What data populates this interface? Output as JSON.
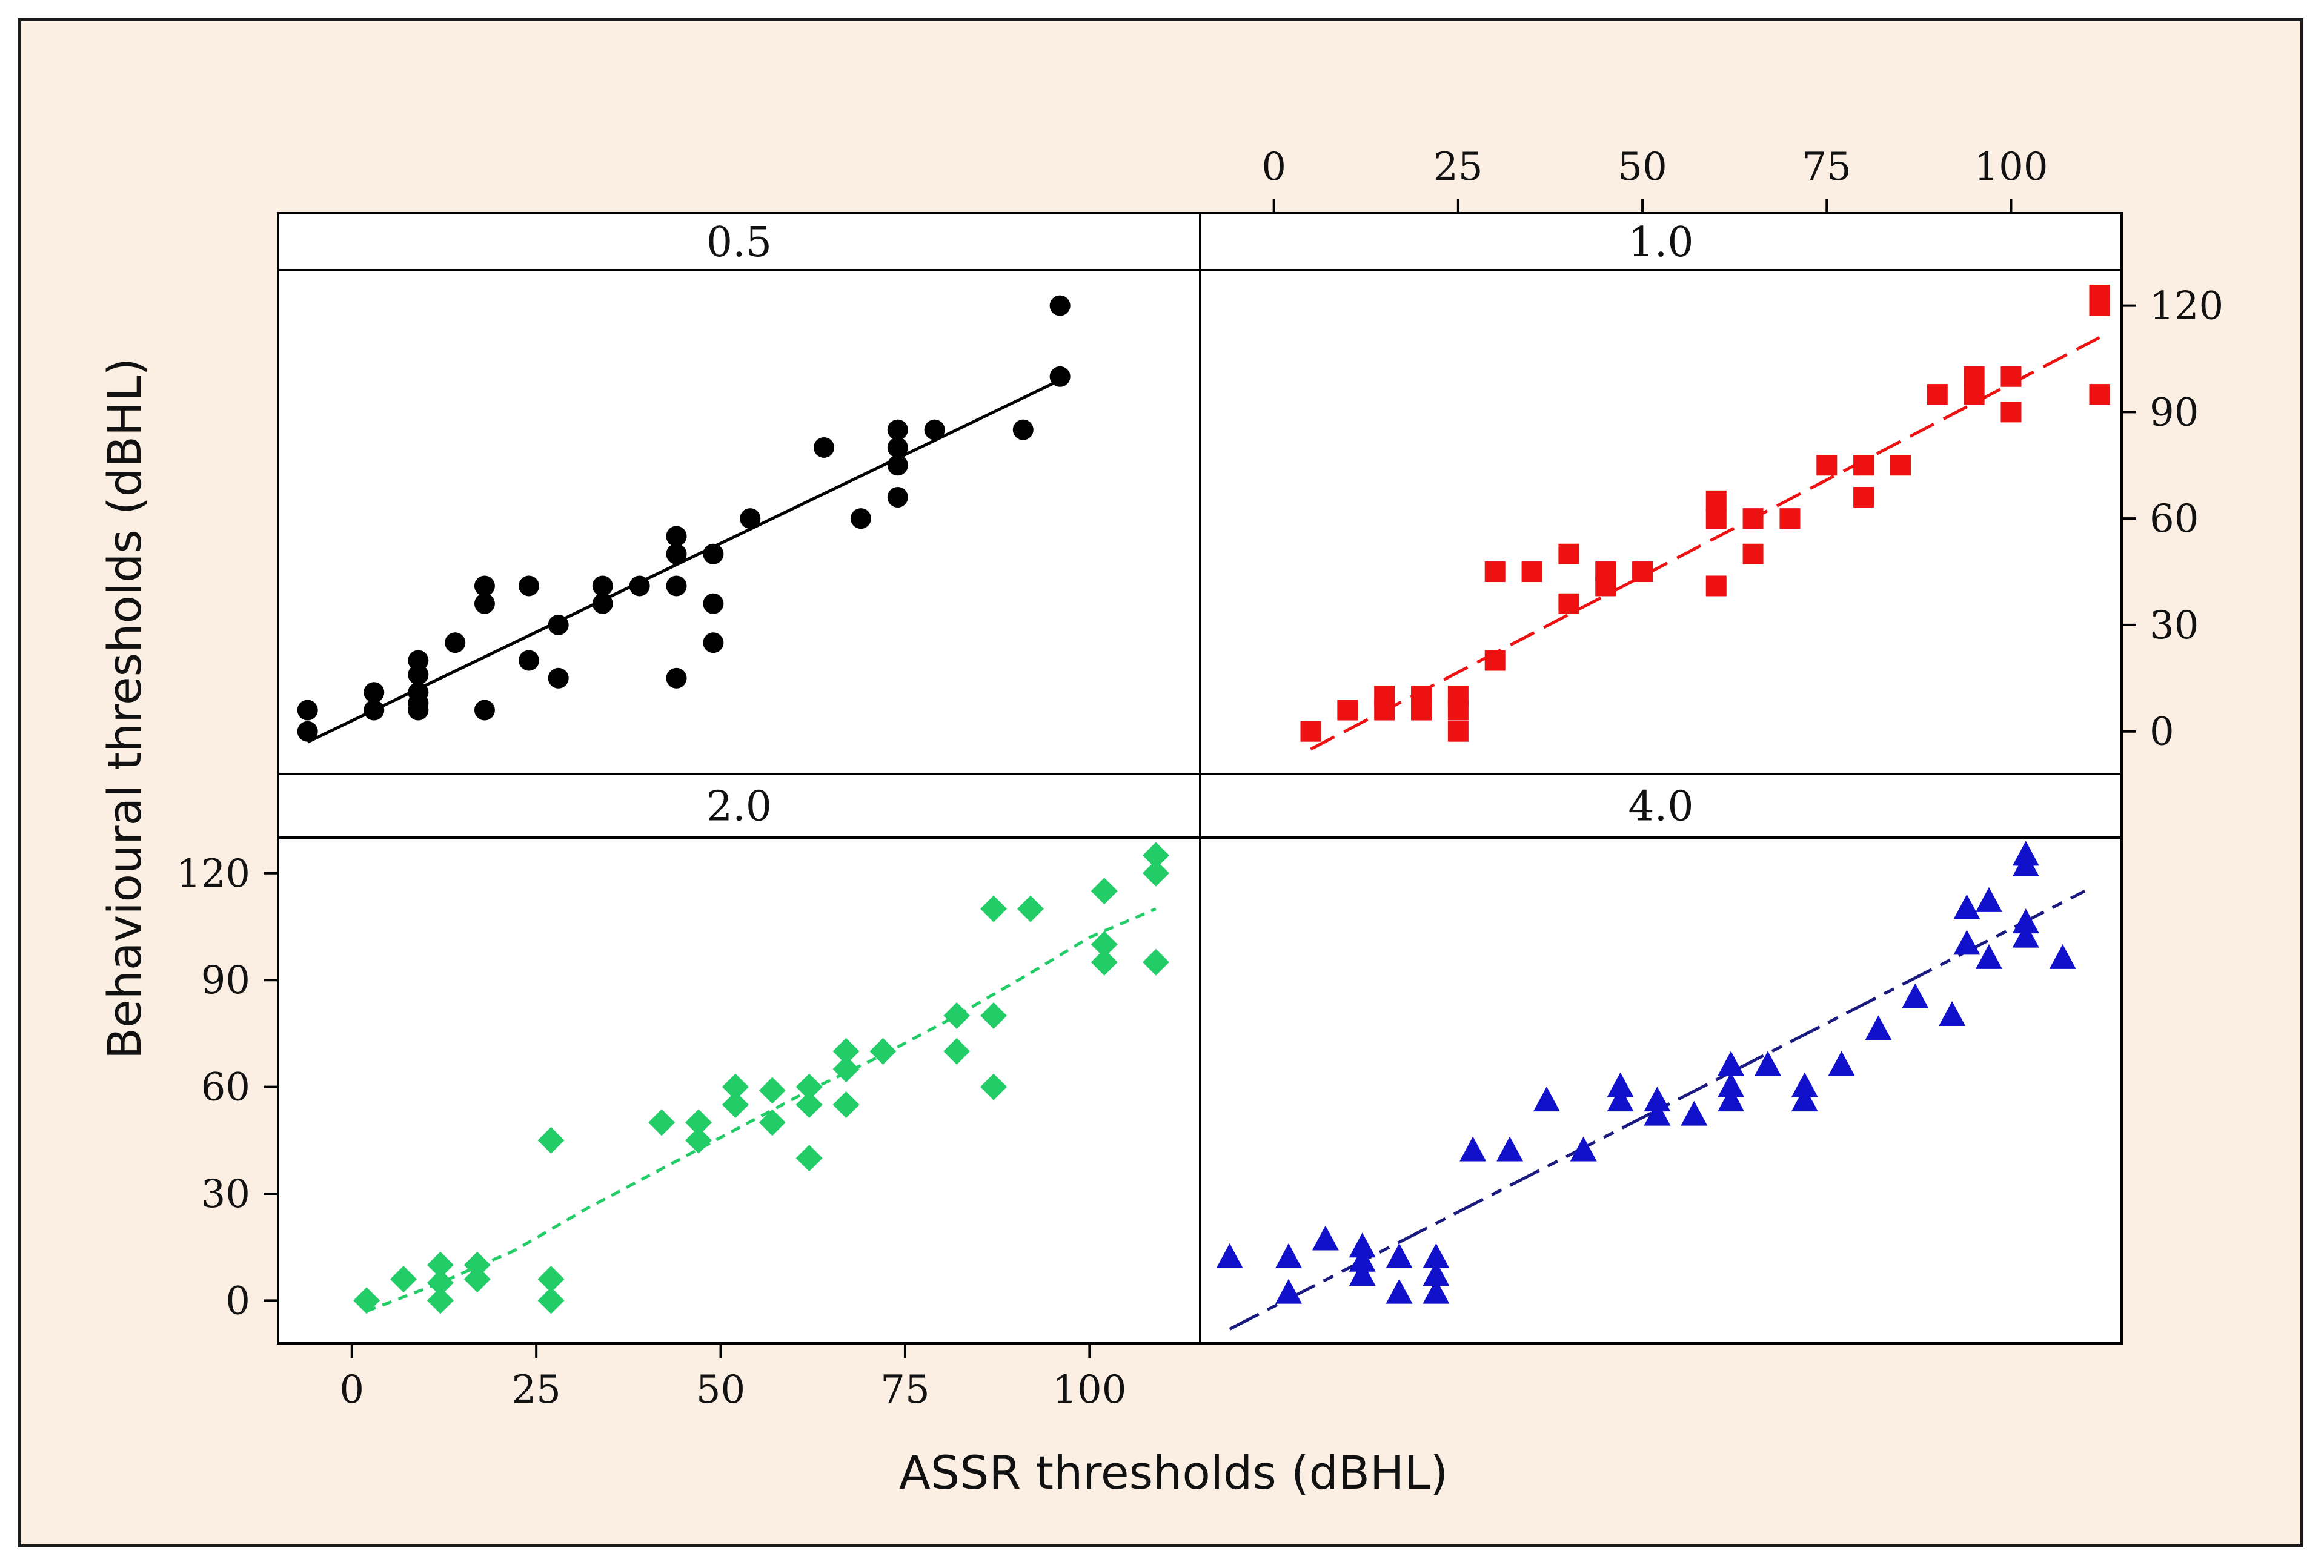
{
  "chart_data": {
    "type": "scatter",
    "layout": "2x2 trellis with shared axes",
    "xlabel": "ASSR thresholds (dBHL)",
    "ylabel": "Behavioural thresholds (dBHL)",
    "xlim": [
      -10,
      115
    ],
    "ylim": [
      -12,
      130
    ],
    "xticks": [
      0,
      25,
      50,
      75,
      100
    ],
    "yticks": [
      0,
      30,
      60,
      90,
      120
    ],
    "panels": [
      {
        "label": "0.5",
        "marker": "circle",
        "color": "#000000",
        "line_style": "solid",
        "fit": [
          [
            -6,
            -3
          ],
          [
            96,
            99
          ]
        ],
        "points": [
          [
            -6,
            6
          ],
          [
            -6,
            0
          ],
          [
            3,
            11
          ],
          [
            3,
            6
          ],
          [
            9,
            6
          ],
          [
            9,
            11
          ],
          [
            9,
            16
          ],
          [
            9,
            20
          ],
          [
            9,
            8
          ],
          [
            14,
            25
          ],
          [
            18,
            41
          ],
          [
            18,
            36
          ],
          [
            18,
            6
          ],
          [
            24,
            41
          ],
          [
            24,
            20
          ],
          [
            28,
            30
          ],
          [
            28,
            15
          ],
          [
            34,
            41
          ],
          [
            34,
            36
          ],
          [
            39,
            41
          ],
          [
            44,
            55
          ],
          [
            44,
            50
          ],
          [
            44,
            41
          ],
          [
            44,
            15
          ],
          [
            49,
            50
          ],
          [
            49,
            36
          ],
          [
            49,
            25
          ],
          [
            54,
            60
          ],
          [
            64,
            80
          ],
          [
            69,
            60
          ],
          [
            74,
            85
          ],
          [
            74,
            80
          ],
          [
            74,
            75
          ],
          [
            74,
            66
          ],
          [
            79,
            85
          ],
          [
            91,
            85
          ],
          [
            96,
            120
          ],
          [
            96,
            100
          ]
        ]
      },
      {
        "label": "1.0",
        "marker": "square",
        "color": "#ee1111",
        "line_style": "long-dash",
        "fit": [
          [
            5,
            -5
          ],
          [
            112,
            111
          ]
        ],
        "points": [
          [
            5,
            0
          ],
          [
            10,
            6
          ],
          [
            15,
            10
          ],
          [
            15,
            6
          ],
          [
            20,
            10
          ],
          [
            20,
            6
          ],
          [
            25,
            10
          ],
          [
            25,
            6
          ],
          [
            25,
            0
          ],
          [
            30,
            45
          ],
          [
            30,
            20
          ],
          [
            35,
            45
          ],
          [
            40,
            50
          ],
          [
            40,
            36
          ],
          [
            45,
            45
          ],
          [
            45,
            41
          ],
          [
            50,
            45
          ],
          [
            60,
            65
          ],
          [
            60,
            60
          ],
          [
            60,
            41
          ],
          [
            65,
            60
          ],
          [
            65,
            50
          ],
          [
            70,
            60
          ],
          [
            75,
            75
          ],
          [
            80,
            75
          ],
          [
            80,
            66
          ],
          [
            85,
            75
          ],
          [
            90,
            95
          ],
          [
            95,
            100
          ],
          [
            95,
            95
          ],
          [
            100,
            100
          ],
          [
            100,
            90
          ],
          [
            112,
            123
          ],
          [
            112,
            120
          ],
          [
            112,
            95
          ]
        ]
      },
      {
        "label": "2.0",
        "marker": "diamond",
        "color": "#22cc66",
        "line_style": "short-dash",
        "fit": [
          [
            2,
            -3
          ],
          [
            12,
            5
          ],
          [
            22,
            14
          ],
          [
            32,
            26
          ],
          [
            42,
            37
          ],
          [
            52,
            48
          ],
          [
            62,
            59
          ],
          [
            72,
            69
          ],
          [
            82,
            80
          ],
          [
            92,
            92
          ],
          [
            100,
            102
          ],
          [
            109,
            110
          ]
        ],
        "points": [
          [
            2,
            0
          ],
          [
            7,
            6
          ],
          [
            12,
            10
          ],
          [
            12,
            5
          ],
          [
            12,
            0
          ],
          [
            17,
            10
          ],
          [
            17,
            6
          ],
          [
            27,
            45
          ],
          [
            27,
            6
          ],
          [
            27,
            0
          ],
          [
            42,
            50
          ],
          [
            47,
            50
          ],
          [
            47,
            45
          ],
          [
            52,
            60
          ],
          [
            52,
            55
          ],
          [
            57,
            59
          ],
          [
            57,
            50
          ],
          [
            62,
            60
          ],
          [
            62,
            55
          ],
          [
            62,
            40
          ],
          [
            67,
            70
          ],
          [
            67,
            65
          ],
          [
            67,
            55
          ],
          [
            72,
            70
          ],
          [
            82,
            80
          ],
          [
            82,
            70
          ],
          [
            87,
            110
          ],
          [
            87,
            80
          ],
          [
            87,
            60
          ],
          [
            92,
            110
          ],
          [
            102,
            115
          ],
          [
            102,
            100
          ],
          [
            102,
            95
          ],
          [
            109,
            125
          ],
          [
            109,
            120
          ],
          [
            109,
            95
          ]
        ]
      },
      {
        "label": "4.0",
        "marker": "triangle",
        "color": "#1111cc",
        "line_style": "long-short-dash",
        "fit": [
          [
            -6,
            -8
          ],
          [
            110,
            115
          ]
        ],
        "points": [
          [
            -6,
            12
          ],
          [
            2,
            12
          ],
          [
            2,
            2
          ],
          [
            7,
            17
          ],
          [
            12,
            15
          ],
          [
            12,
            11
          ],
          [
            12,
            7
          ],
          [
            17,
            12
          ],
          [
            17,
            2
          ],
          [
            22,
            12
          ],
          [
            22,
            7
          ],
          [
            22,
            2
          ],
          [
            27,
            42
          ],
          [
            32,
            42
          ],
          [
            37,
            56
          ],
          [
            42,
            42
          ],
          [
            47,
            60
          ],
          [
            47,
            56
          ],
          [
            52,
            56
          ],
          [
            52,
            52
          ],
          [
            57,
            52
          ],
          [
            62,
            66
          ],
          [
            62,
            60
          ],
          [
            62,
            56
          ],
          [
            67,
            66
          ],
          [
            72,
            60
          ],
          [
            72,
            56
          ],
          [
            77,
            66
          ],
          [
            82,
            76
          ],
          [
            87,
            85
          ],
          [
            92,
            80
          ],
          [
            94,
            110
          ],
          [
            94,
            100
          ],
          [
            97,
            112
          ],
          [
            97,
            96
          ],
          [
            102,
            125
          ],
          [
            102,
            122
          ],
          [
            102,
            106
          ],
          [
            102,
            102
          ],
          [
            107,
            96
          ]
        ]
      }
    ]
  }
}
